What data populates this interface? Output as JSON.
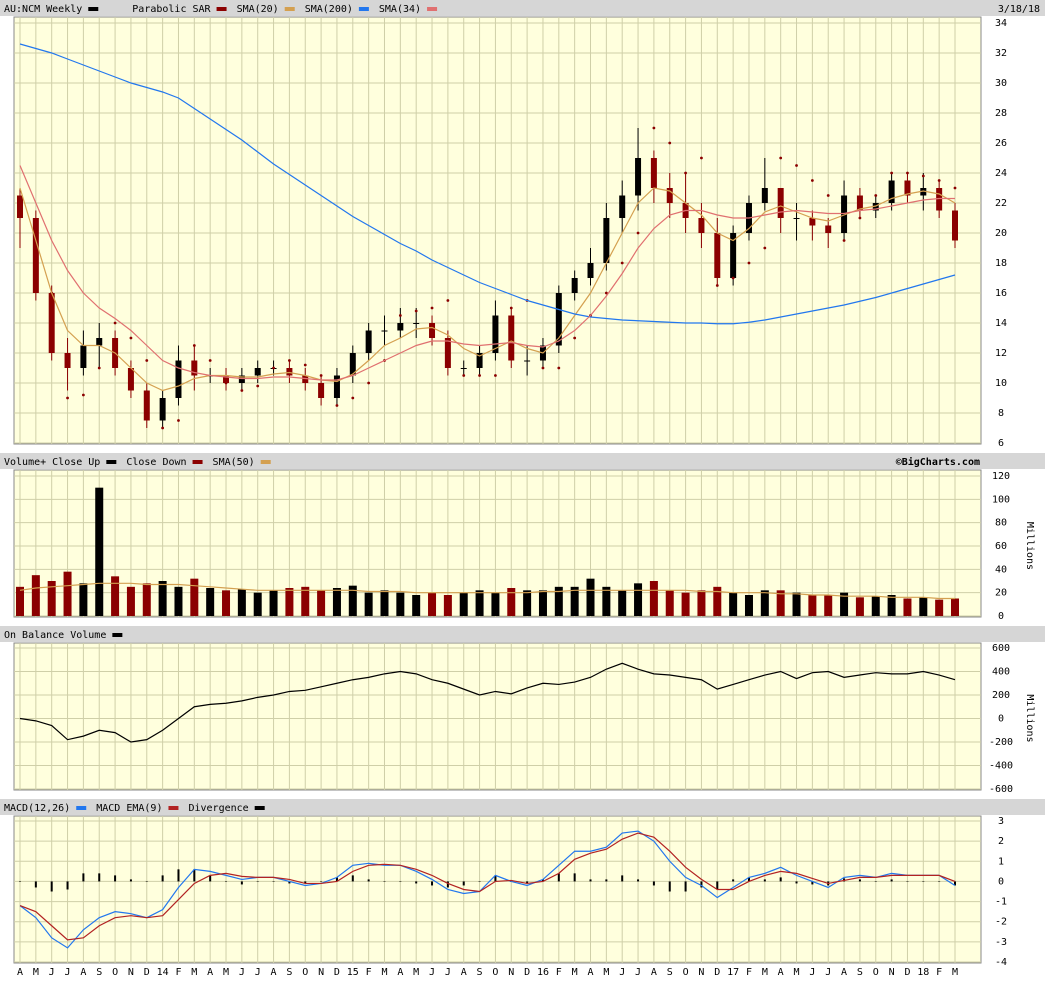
{
  "chart_data": [
    {
      "type": "candlestick",
      "date": "3/18/18",
      "ylim": [
        6,
        34
      ],
      "yticks": [
        6,
        8,
        10,
        12,
        14,
        16,
        18,
        20,
        22,
        24,
        26,
        28,
        30,
        32,
        34
      ],
      "grid": true,
      "background": "#ffffdd",
      "series": [
        {
          "type": "candlestick",
          "name": "AU:NCM Weekly",
          "color": "#000000",
          "down_color": "#8b0000",
          "open": [
            22.5,
            21,
            16,
            12,
            11,
            12.5,
            13,
            11,
            9.5,
            7.5,
            9,
            11.5,
            10.5,
            10.5,
            10,
            10.5,
            11,
            11,
            10.5,
            10,
            9,
            10.5,
            12,
            13.5,
            13.5,
            14,
            14,
            13,
            11,
            11,
            12,
            14.5,
            11.5,
            11.5,
            12.5,
            16,
            17,
            18,
            21,
            22.5,
            25,
            23,
            22,
            21,
            20,
            17,
            20,
            22,
            23,
            21,
            21,
            20.5,
            20,
            22.5,
            21.5,
            22,
            23.5,
            22.5,
            23,
            21.5
          ],
          "high": [
            23,
            21.5,
            16.5,
            13,
            13.5,
            14,
            13.5,
            11.5,
            10,
            9.5,
            12.5,
            12.5,
            11,
            11,
            11,
            11.5,
            11.5,
            11.5,
            11,
            10.5,
            11,
            12.5,
            14,
            14.5,
            15,
            15,
            14.5,
            13.5,
            11.5,
            12.5,
            15.5,
            15,
            12.5,
            13,
            16.5,
            17.5,
            19,
            22,
            23.5,
            27,
            25.5,
            24,
            24,
            22,
            21,
            20.5,
            22.5,
            25,
            23,
            22,
            21.5,
            21,
            23.5,
            23,
            22.5,
            24,
            24,
            24,
            23.5,
            22
          ],
          "low": [
            19,
            15.5,
            11.5,
            9.5,
            10.5,
            11,
            10.5,
            9,
            7,
            7,
            8.5,
            9.5,
            10,
            9.5,
            9.5,
            10,
            10.5,
            10,
            9.5,
            8.5,
            8.5,
            10,
            11.5,
            12.5,
            13,
            13,
            12.5,
            10.5,
            10.5,
            10.5,
            11.5,
            11,
            10.5,
            11,
            12,
            15.5,
            16.5,
            17.5,
            20,
            21.5,
            22,
            21,
            20,
            19,
            16.5,
            16.5,
            19.5,
            21.5,
            20,
            19.5,
            19.5,
            19,
            19.5,
            21,
            21,
            21.5,
            22,
            21.5,
            21,
            19
          ],
          "close": [
            21,
            16,
            12,
            11,
            12.5,
            13,
            11,
            9.5,
            7.5,
            9,
            11.5,
            10.5,
            10.5,
            10,
            10.5,
            11,
            11,
            10.5,
            10,
            9,
            10.5,
            12,
            13.5,
            13.5,
            14,
            14,
            13,
            11,
            11,
            12,
            14.5,
            11.5,
            11.5,
            12.5,
            16,
            17,
            18,
            21,
            22.5,
            25,
            23,
            22,
            21,
            20,
            17,
            20,
            22,
            23,
            21,
            21,
            20.5,
            20,
            22.5,
            21.5,
            22,
            23.5,
            22.5,
            23,
            21.5,
            19.5
          ]
        },
        {
          "type": "dots",
          "name": "Parabolic SAR",
          "color": "#8b0000",
          "values": [
            22,
            18.5,
            16,
            9,
            9.2,
            11,
            14,
            13,
            11.5,
            7,
            7.5,
            12.5,
            11.5,
            10,
            9.5,
            9.8,
            11,
            11.5,
            11.2,
            10.5,
            8.5,
            9,
            10,
            11.5,
            14.5,
            14.8,
            15,
            15.5,
            10.5,
            10.5,
            10.5,
            15,
            15.5,
            11,
            11,
            13,
            14.5,
            16,
            18,
            20,
            27,
            26,
            24,
            25,
            16.5,
            17,
            18,
            19,
            25,
            24.5,
            23.5,
            22.5,
            19.5,
            21,
            22.5,
            24,
            24,
            23.8,
            23.5,
            23
          ]
        },
        {
          "type": "line",
          "name": "SMA(20)",
          "color": "#d4a050",
          "values": [
            23,
            19.5,
            16,
            13.5,
            12.5,
            12.5,
            12,
            11,
            10,
            9.5,
            9.8,
            10.3,
            10.5,
            10.5,
            10.4,
            10.4,
            10.6,
            10.7,
            10.5,
            10.2,
            10.1,
            10.6,
            11.5,
            12.5,
            13,
            13.6,
            13.7,
            13.2,
            12.3,
            11.8,
            12.3,
            12.8,
            12.3,
            12,
            13,
            14.5,
            16,
            18,
            20,
            22,
            23,
            22.8,
            22,
            21.2,
            20,
            19.5,
            20.3,
            21.4,
            21.8,
            21.4,
            21,
            20.8,
            21.2,
            21.6,
            21.8,
            22.3,
            22.6,
            22.8,
            22.6,
            22
          ]
        },
        {
          "type": "line",
          "name": "SMA(200)",
          "color": "#2277ee",
          "values": [
            32.6,
            32.3,
            32.0,
            31.6,
            31.2,
            30.8,
            30.4,
            30.0,
            29.7,
            29.4,
            29.0,
            28.3,
            27.6,
            26.9,
            26.2,
            25.4,
            24.6,
            23.9,
            23.2,
            22.5,
            21.8,
            21.1,
            20.5,
            19.9,
            19.3,
            18.8,
            18.2,
            17.7,
            17.2,
            16.7,
            16.3,
            15.9,
            15.5,
            15.2,
            14.9,
            14.6,
            14.4,
            14.3,
            14.2,
            14.15,
            14.1,
            14.05,
            14.0,
            14.0,
            13.95,
            13.95,
            14.05,
            14.2,
            14.4,
            14.6,
            14.8,
            15.0,
            15.2,
            15.45,
            15.7,
            16.0,
            16.3,
            16.6,
            16.9,
            17.2
          ]
        },
        {
          "type": "line",
          "name": "SMA(34)",
          "color": "#e07070",
          "values": [
            24.5,
            22,
            19.5,
            17.5,
            16,
            15,
            14.3,
            13.5,
            12.5,
            11.5,
            11,
            10.7,
            10.5,
            10.4,
            10.3,
            10.3,
            10.4,
            10.4,
            10.3,
            10.2,
            10.2,
            10.5,
            11,
            11.5,
            12,
            12.5,
            12.8,
            12.8,
            12.6,
            12.5,
            12.6,
            12.7,
            12.5,
            12.4,
            12.8,
            13.5,
            14.5,
            15.8,
            17.3,
            19,
            20.3,
            21.2,
            21.5,
            21.5,
            21.2,
            21,
            21,
            21.2,
            21.4,
            21.5,
            21.4,
            21.3,
            21.3,
            21.5,
            21.6,
            21.8,
            22,
            22.2,
            22.3,
            22.3
          ]
        }
      ]
    },
    {
      "type": "bar",
      "label": "Volume+",
      "credit": "©BigCharts.com",
      "ylabel": "Millions",
      "ylim": [
        0,
        120
      ],
      "yticks": [
        0,
        20,
        40,
        60,
        80,
        100,
        120
      ],
      "grid": true,
      "background": "#ffffdd",
      "series": [
        {
          "type": "volume",
          "up_name": "Close Up",
          "up_color": "#000000",
          "down_name": "Close Down",
          "down_color": "#8b0000",
          "values": [
            25,
            35,
            30,
            38,
            28,
            110,
            34,
            25,
            28,
            30,
            25,
            32,
            24,
            22,
            23,
            20,
            22,
            24,
            25,
            22,
            24,
            26,
            20,
            22,
            20,
            18,
            20,
            18,
            20,
            22,
            20,
            24,
            22,
            22,
            25,
            25,
            32,
            25,
            22,
            28,
            30,
            22,
            20,
            22,
            25,
            20,
            18,
            22,
            22,
            20,
            18,
            18,
            20,
            16,
            17,
            18,
            15,
            16,
            14,
            15
          ]
        },
        {
          "type": "line",
          "name": "SMA(50)",
          "color": "#d4a050",
          "values": [
            22,
            24,
            25,
            26,
            27,
            28,
            28,
            28,
            27,
            27,
            27,
            26,
            25,
            24,
            23,
            22,
            22,
            22,
            22,
            22,
            22,
            22,
            21,
            21,
            21,
            20,
            20,
            20,
            20,
            20,
            20,
            20,
            20,
            21,
            21,
            22,
            22,
            22,
            22,
            22,
            22,
            22,
            22,
            21,
            21,
            20,
            20,
            20,
            19,
            19,
            18,
            18,
            17,
            17,
            17,
            16,
            16,
            16,
            15,
            15
          ]
        }
      ]
    },
    {
      "type": "line",
      "ylabel": "Millions",
      "ylim": [
        -600,
        600
      ],
      "yticks": [
        -600,
        -400,
        -200,
        0,
        200,
        400,
        600
      ],
      "grid": true,
      "background": "#ffffdd",
      "series": [
        {
          "type": "line",
          "name": "On Balance Volume",
          "color": "#000000",
          "values": [
            0,
            -20,
            -60,
            -180,
            -150,
            -100,
            -120,
            -200,
            -180,
            -100,
            0,
            100,
            120,
            130,
            150,
            180,
            200,
            230,
            240,
            270,
            300,
            330,
            350,
            380,
            400,
            380,
            330,
            300,
            250,
            200,
            230,
            210,
            260,
            300,
            290,
            310,
            350,
            420,
            470,
            420,
            380,
            370,
            350,
            330,
            250,
            290,
            330,
            370,
            400,
            340,
            390,
            400,
            350,
            370,
            390,
            380,
            380,
            400,
            370,
            330
          ]
        }
      ]
    },
    {
      "type": "line",
      "ylim": [
        -4,
        3
      ],
      "yticks": [
        -4,
        -3,
        -2,
        -1,
        0,
        1,
        2,
        3
      ],
      "grid": true,
      "background": "#ffffdd",
      "categories": [
        "A",
        "M",
        "J",
        "J",
        "A",
        "S",
        "O",
        "N",
        "D",
        "14",
        "F",
        "M",
        "A",
        "M",
        "J",
        "J",
        "A",
        "S",
        "O",
        "N",
        "D",
        "15",
        "F",
        "M",
        "A",
        "M",
        "J",
        "J",
        "A",
        "S",
        "O",
        "N",
        "D",
        "16",
        "F",
        "M",
        "A",
        "M",
        "J",
        "J",
        "A",
        "S",
        "O",
        "N",
        "D",
        "17",
        "F",
        "M",
        "A",
        "M",
        "J",
        "J",
        "A",
        "S",
        "O",
        "N",
        "D",
        "18",
        "F",
        "M"
      ],
      "series": [
        {
          "type": "line",
          "name": "MACD(12,26)",
          "color": "#2277ee",
          "values": [
            -1.2,
            -1.8,
            -2.8,
            -3.3,
            -2.4,
            -1.8,
            -1.5,
            -1.6,
            -1.8,
            -1.4,
            -0.3,
            0.6,
            0.5,
            0.3,
            0.1,
            0.2,
            0.2,
            0.0,
            -0.2,
            -0.1,
            0.2,
            0.8,
            0.9,
            0.8,
            0.8,
            0.5,
            0.1,
            -0.4,
            -0.6,
            -0.5,
            0.3,
            0.0,
            -0.2,
            0.1,
            0.8,
            1.5,
            1.5,
            1.7,
            2.4,
            2.5,
            2.0,
            1.0,
            0.2,
            -0.2,
            -0.8,
            -0.3,
            0.2,
            0.4,
            0.7,
            0.3,
            0.0,
            -0.3,
            0.2,
            0.3,
            0.2,
            0.4,
            0.3,
            0.3,
            0.3,
            -0.2
          ]
        },
        {
          "type": "line",
          "name": "MACD EMA(9)",
          "color": "#b22222",
          "values": [
            -1.2,
            -1.5,
            -2.2,
            -2.9,
            -2.8,
            -2.2,
            -1.8,
            -1.7,
            -1.8,
            -1.7,
            -0.9,
            -0.1,
            0.3,
            0.4,
            0.25,
            0.2,
            0.2,
            0.1,
            -0.1,
            -0.1,
            0.0,
            0.5,
            0.8,
            0.85,
            0.8,
            0.6,
            0.3,
            -0.1,
            -0.4,
            -0.5,
            0.0,
            0.05,
            -0.1,
            0.0,
            0.4,
            1.1,
            1.4,
            1.6,
            2.1,
            2.4,
            2.2,
            1.5,
            0.7,
            0.1,
            -0.4,
            -0.4,
            0.0,
            0.3,
            0.5,
            0.4,
            0.15,
            -0.1,
            0.05,
            0.2,
            0.2,
            0.3,
            0.3,
            0.3,
            0.3,
            0.0
          ]
        },
        {
          "type": "bar",
          "name": "Divergence",
          "color": "#000000",
          "values": [
            0,
            -0.3,
            -0.5,
            -0.4,
            0.4,
            0.4,
            0.3,
            0.1,
            0,
            0.3,
            0.6,
            0.6,
            0.3,
            0,
            -0.15,
            0,
            0,
            -0.1,
            -0.1,
            0,
            0.2,
            0.3,
            0.1,
            0,
            0,
            -0.1,
            -0.2,
            -0.3,
            -0.2,
            0,
            0.3,
            0,
            -0.1,
            0.1,
            0.4,
            0.4,
            0.1,
            0.1,
            0.3,
            0.1,
            -0.2,
            -0.5,
            -0.5,
            -0.3,
            -0.4,
            0.1,
            0.2,
            0.1,
            0.2,
            -0.1,
            -0.15,
            -0.2,
            0.15,
            0.1,
            0,
            0.1,
            0,
            0,
            0,
            -0.2
          ]
        }
      ]
    }
  ]
}
